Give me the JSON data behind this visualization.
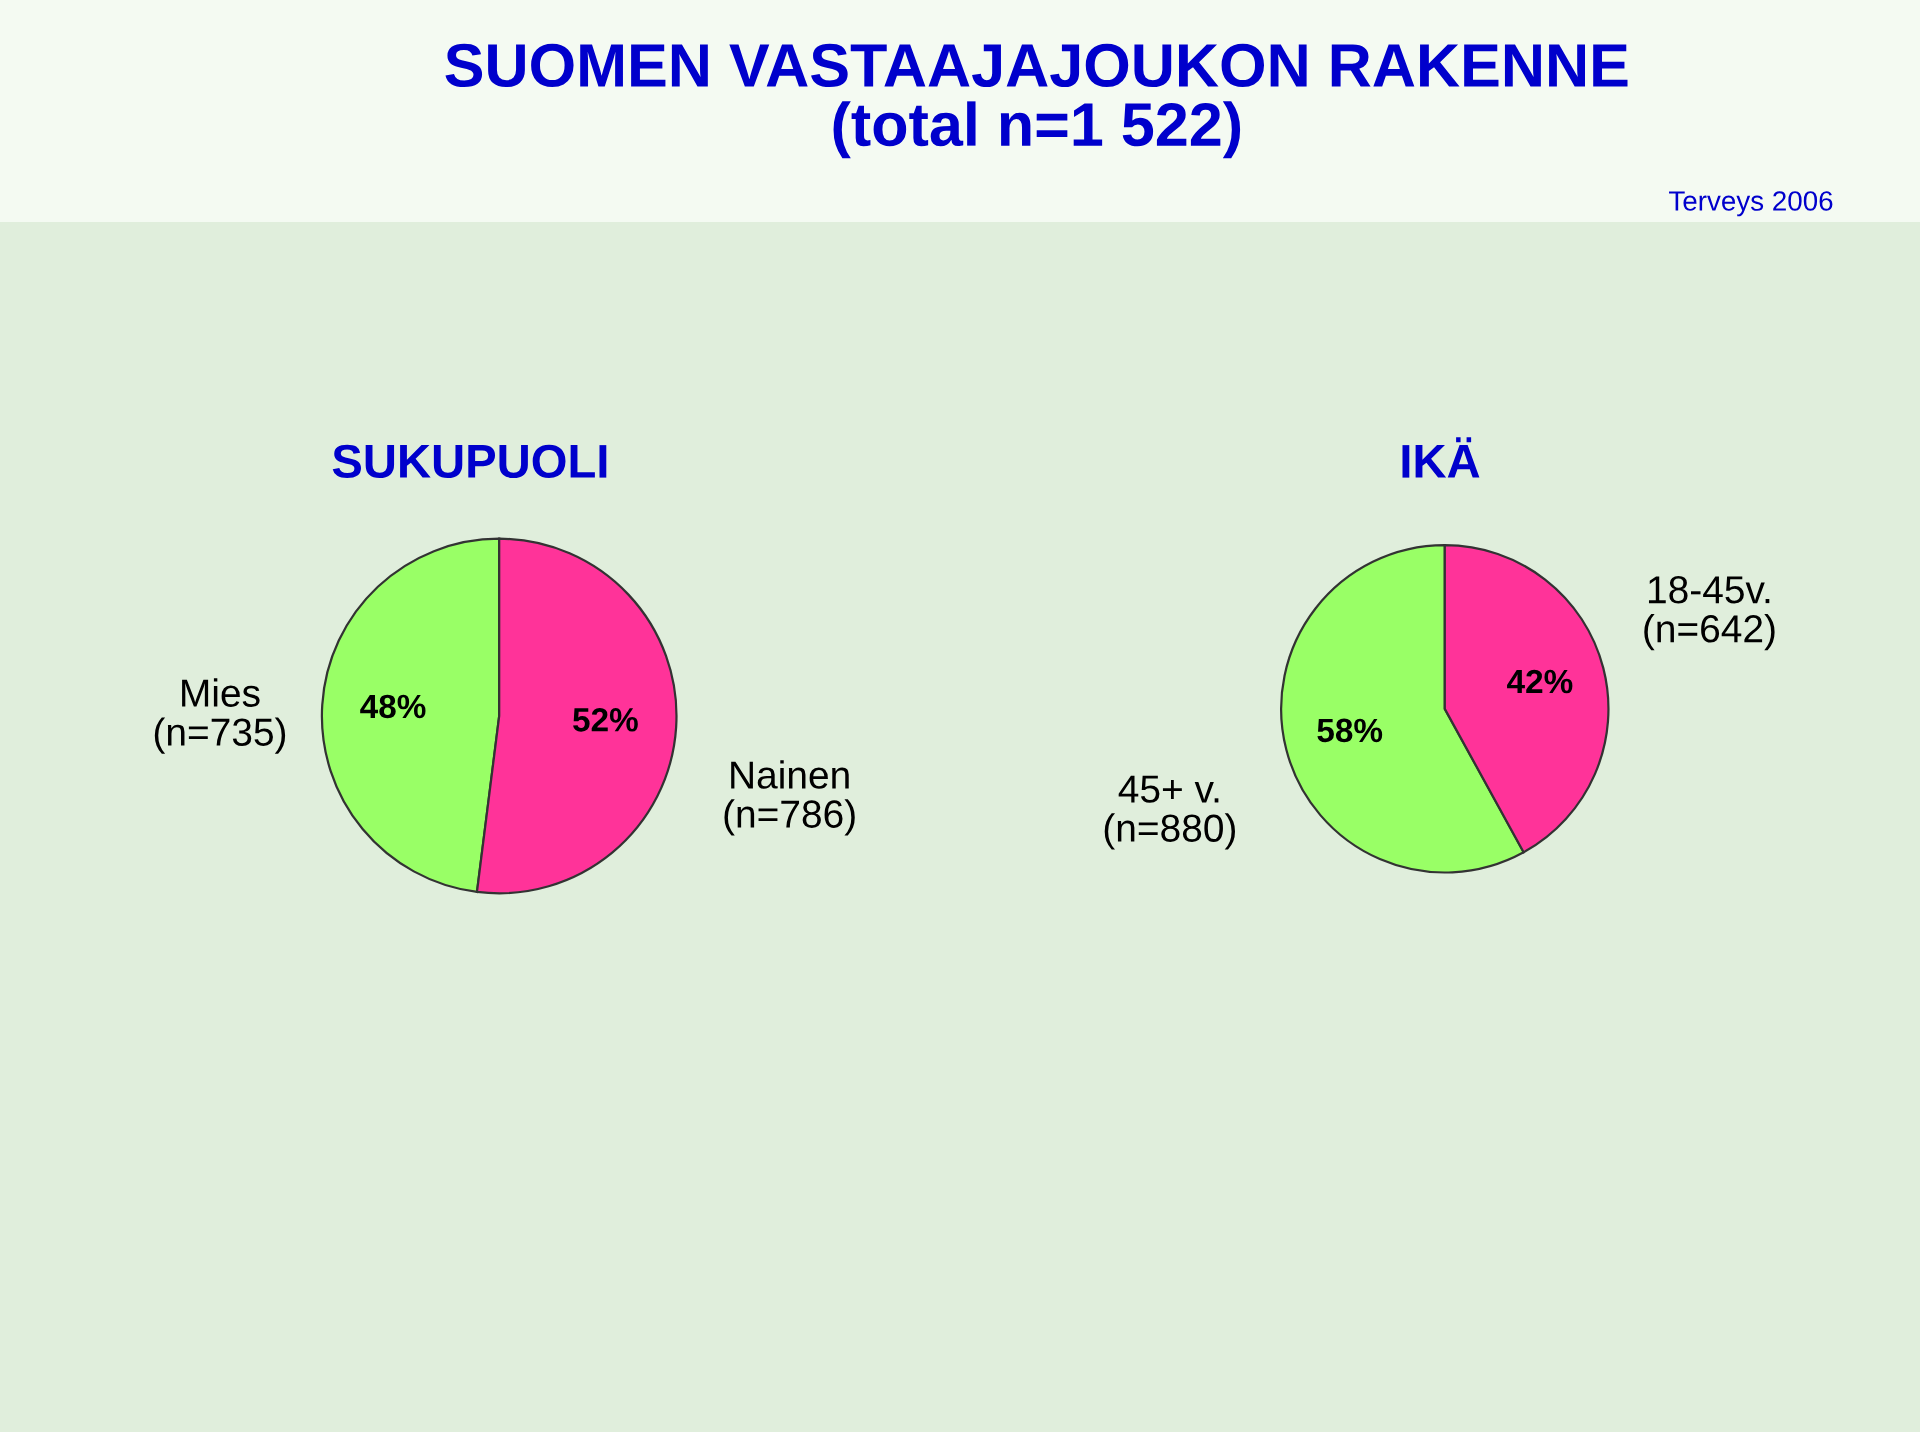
{
  "chart_data": [
    {
      "type": "pie",
      "title": "SUOMEN VASTAAJAJOUKON RAKENNE\n(total n=1 522)",
      "subtitle": "SUKUPUOLI",
      "annotations": [
        "Terveys 2006"
      ],
      "categories": [
        "Mies\n(n=735)",
        "Nainen\n(n=786)"
      ],
      "values": [
        48,
        52
      ],
      "colors": [
        "#99ff66",
        "#ff3399"
      ],
      "value_labels": [
        "48%",
        "52%"
      ]
    },
    {
      "type": "pie",
      "subtitle": "IKÄ",
      "categories": [
        "45+ v.\n(n=880)",
        "18-45v.\n(n=642)"
      ],
      "values": [
        58,
        42
      ],
      "colors": [
        "#99ff66",
        "#ff3399"
      ],
      "value_labels": [
        "58%",
        "42%"
      ]
    }
  ]
}
